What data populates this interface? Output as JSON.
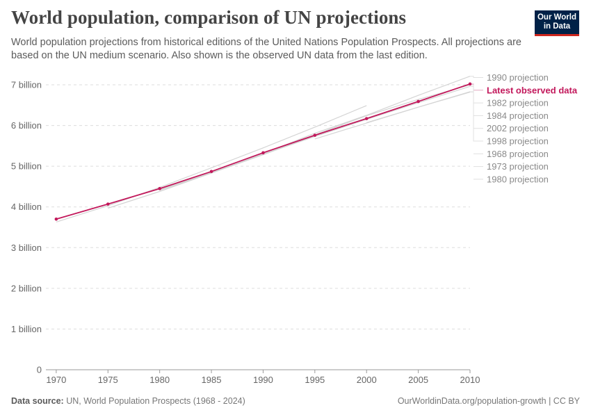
{
  "header": {
    "title": "World population, comparison of UN projections",
    "subtitle": "World population projections from historical editions of the United Nations Population Prospects. All projections are based on the UN medium scenario. Also shown is the observed UN data from the last edition.",
    "logo_line1": "Our World",
    "logo_line2": "in Data"
  },
  "footer": {
    "source_label": "Data source:",
    "source_text": "UN, World Population Prospects (1968 - 2024)",
    "url": "OurWorldinData.org/population-growth | CC BY"
  },
  "colors": {
    "observed": "#c2185b",
    "projection": "#d4d4d4",
    "grid": "#dddddd"
  },
  "chart_data": {
    "type": "line",
    "x_ticks": [
      1970,
      1975,
      1980,
      1985,
      1990,
      1995,
      2000,
      2005,
      2010
    ],
    "y_ticks": [
      0,
      1000000000,
      2000000000,
      3000000000,
      4000000000,
      5000000000,
      6000000000,
      7000000000
    ],
    "y_tick_labels": [
      "0",
      "1 billion",
      "2 billion",
      "3 billion",
      "4 billion",
      "5 billion",
      "6 billion",
      "7 billion"
    ],
    "xlim": [
      1969,
      2010
    ],
    "ylim": [
      0,
      7000000000
    ],
    "grid": true,
    "series": [
      {
        "name": "1990 projection",
        "highlight": false,
        "x": [
          1990,
          1995,
          2000,
          2005,
          2010
        ],
        "y": [
          5330000000,
          5770000000,
          6250000000,
          6740000000,
          7210000000
        ]
      },
      {
        "name": "Latest observed data",
        "highlight": true,
        "x": [
          1970,
          1975,
          1980,
          1985,
          1990,
          1995,
          2000,
          2005,
          2010
        ],
        "y": [
          3700000000,
          4070000000,
          4450000000,
          4870000000,
          5330000000,
          5760000000,
          6170000000,
          6590000000,
          7020000000
        ]
      },
      {
        "name": "1982 projection",
        "highlight": false,
        "x": [
          1980,
          1985,
          1990,
          1995,
          2000,
          2005,
          2010
        ],
        "y": [
          4430000000,
          4840000000,
          5290000000,
          5770000000,
          6240000000,
          6640000000,
          7000000000
        ]
      },
      {
        "name": "1984 projection",
        "highlight": false,
        "x": [
          1985,
          1990,
          1995,
          2000,
          2005,
          2010
        ],
        "y": [
          4850000000,
          5290000000,
          5730000000,
          6150000000,
          6560000000,
          6960000000
        ]
      },
      {
        "name": "2002 projection",
        "highlight": false,
        "x": [
          2000,
          2005,
          2010
        ],
        "y": [
          6070000000,
          6450000000,
          6830000000
        ]
      },
      {
        "name": "1998 projection",
        "highlight": false,
        "x": [
          1995,
          2000,
          2005,
          2010
        ],
        "y": [
          5670000000,
          6060000000,
          6450000000,
          6820000000
        ]
      },
      {
        "name": "1968 projection",
        "highlight": false,
        "x": [
          1970,
          1975,
          1980,
          1985,
          1990,
          1995,
          2000
        ],
        "y": [
          3630000000,
          4030000000,
          4480000000,
          4960000000,
          5450000000,
          5960000000,
          6490000000
        ]
      },
      {
        "name": "1973 projection",
        "highlight": false,
        "x": [
          1975,
          1980,
          1985,
          1990,
          1995,
          2000
        ],
        "y": [
          3970000000,
          4380000000,
          4830000000,
          5310000000,
          5810000000,
          6250000000
        ]
      },
      {
        "name": "1980 projection",
        "highlight": false,
        "x": [
          1980,
          1985,
          1990,
          1995,
          2000
        ],
        "y": [
          4410000000,
          4830000000,
          5280000000,
          5750000000,
          6180000000
        ]
      }
    ]
  }
}
